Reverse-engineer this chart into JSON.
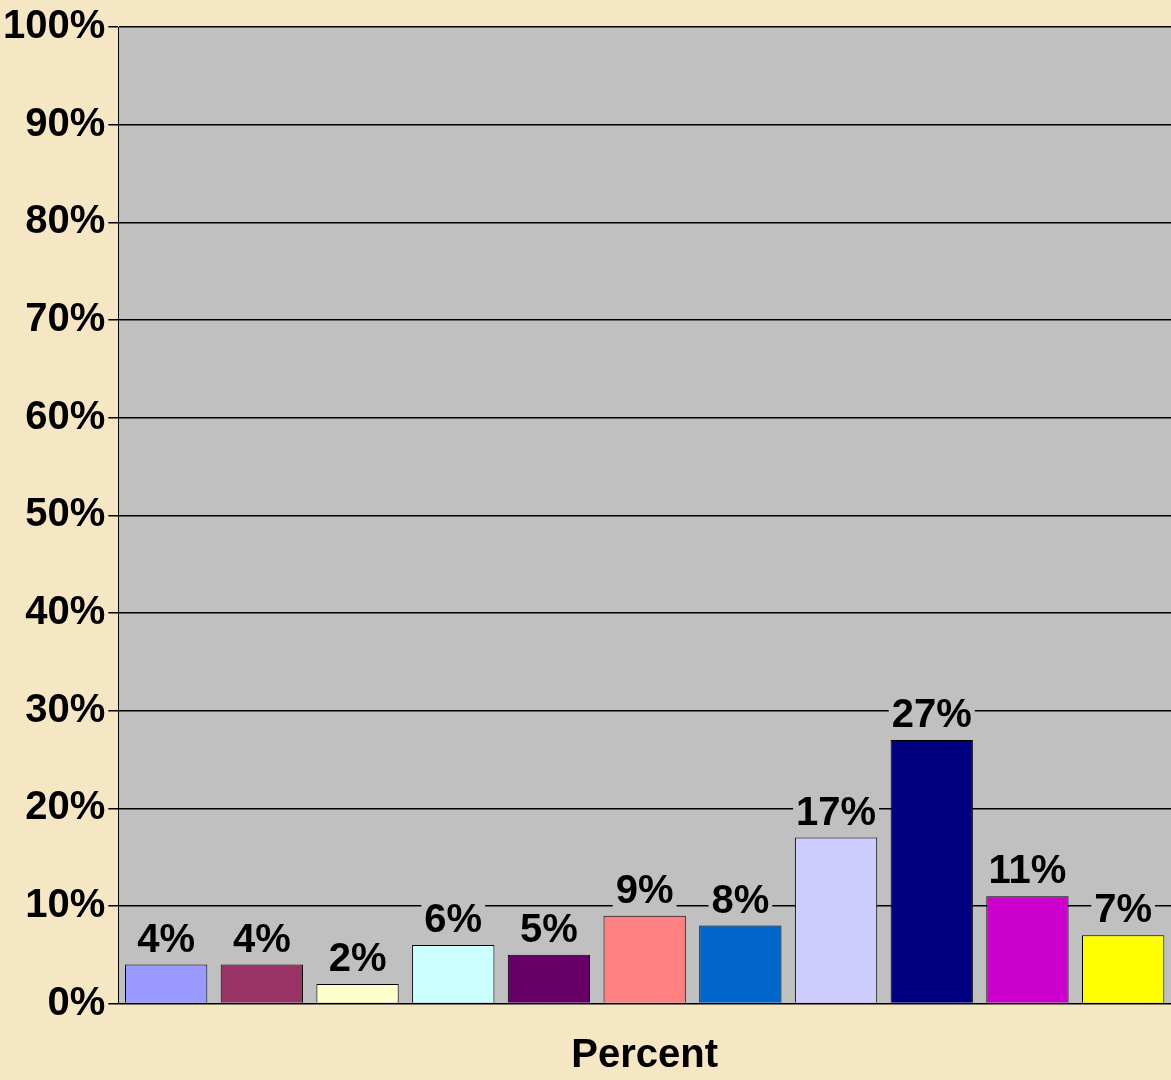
{
  "chart_data": {
    "type": "bar",
    "xlabel": "Percent",
    "categories": [
      null,
      null,
      null,
      null,
      null,
      null,
      null,
      null,
      null,
      null,
      null
    ],
    "values": [
      4,
      4,
      2,
      6,
      5,
      9,
      8,
      17,
      27,
      11,
      7
    ],
    "colors": [
      "#9999ff",
      "#993366",
      "#ffffcc",
      "#ccffff",
      "#660066",
      "#ff8080",
      "#0066cc",
      "#ccccff",
      "#000080",
      "#cc00cc",
      "#ffff00"
    ],
    "value_labels": [
      "4%",
      "4%",
      "2%",
      "6%",
      "5%",
      "9%",
      "8%",
      "17%",
      "27%",
      "11%",
      "7%"
    ],
    "ylim": [
      0,
      100
    ],
    "yticks": [
      {
        "value": 0,
        "label": "0%"
      },
      {
        "value": 10,
        "label": "10%"
      },
      {
        "value": 20,
        "label": "20%"
      },
      {
        "value": 30,
        "label": "30%"
      },
      {
        "value": 40,
        "label": "40%"
      },
      {
        "value": 50,
        "label": "50%"
      },
      {
        "value": 60,
        "label": "60%"
      },
      {
        "value": 70,
        "label": "70%"
      },
      {
        "value": 80,
        "label": "80%"
      },
      {
        "value": 90,
        "label": "90%"
      },
      {
        "value": 100,
        "label": "100%"
      }
    ],
    "grid": "y"
  }
}
